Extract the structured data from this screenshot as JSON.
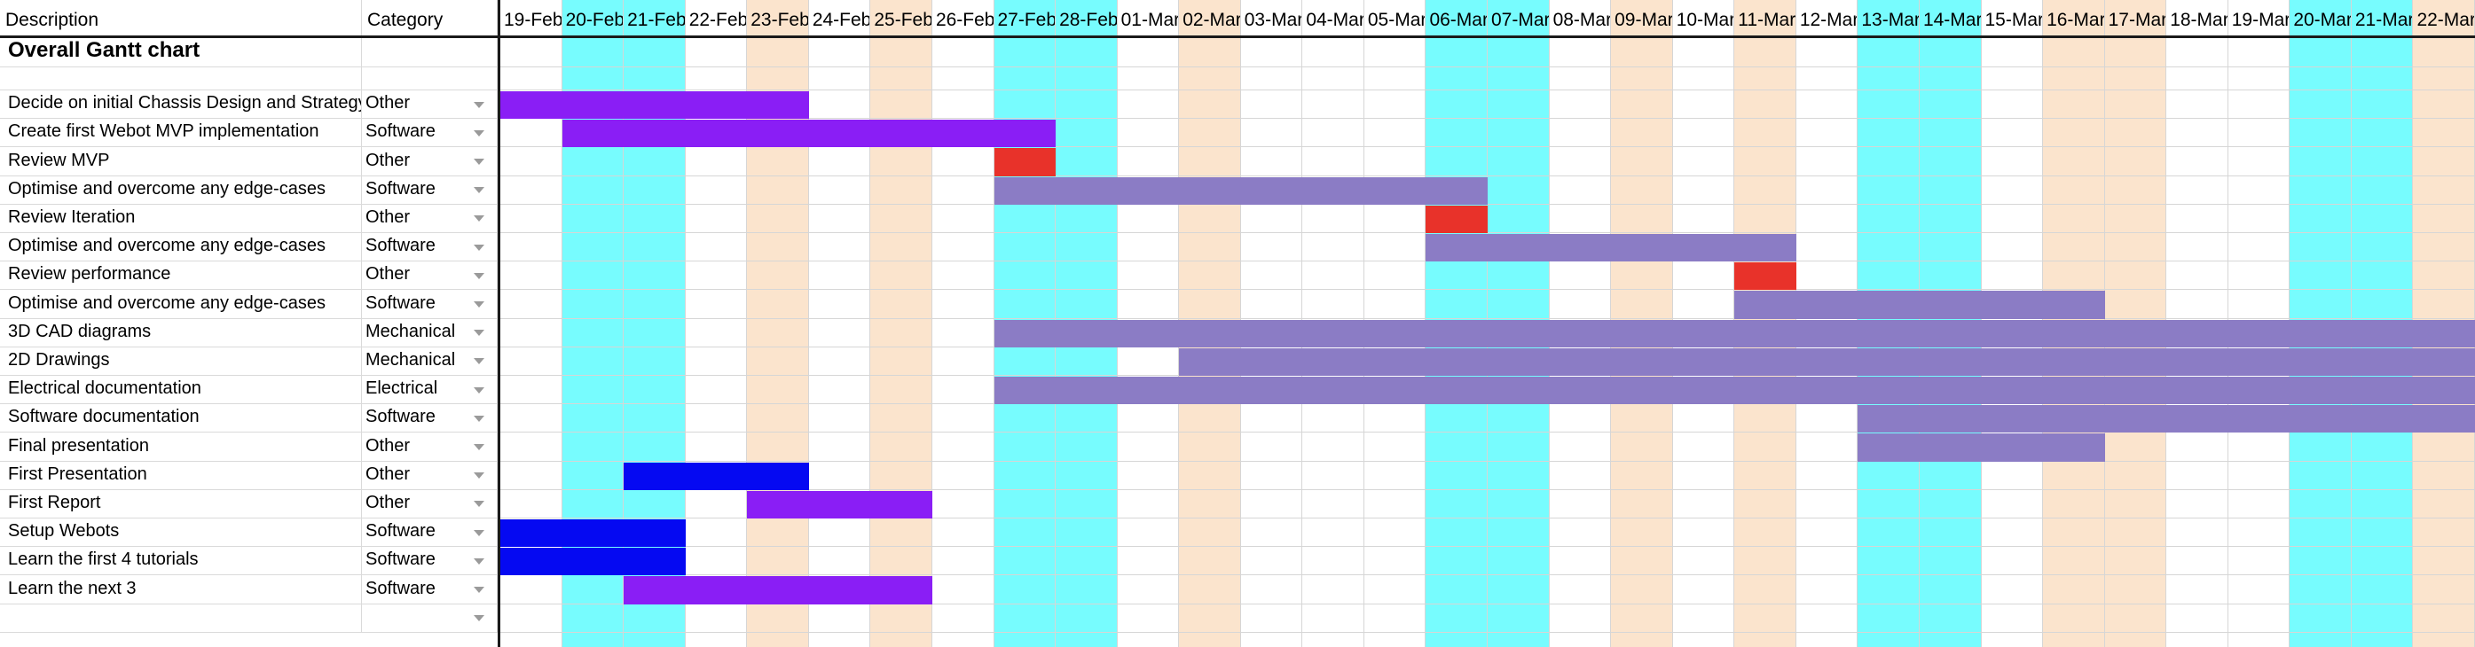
{
  "sheet": {
    "header": {
      "description": "Description",
      "category": "Category"
    },
    "title": "Overall Gantt chart",
    "dates": [
      "19-Feb",
      "20-Feb",
      "21-Feb",
      "22-Feb",
      "23-Feb",
      "24-Feb",
      "25-Feb",
      "26-Feb",
      "27-Feb",
      "28-Feb",
      "01-Mar",
      "02-Mar",
      "03-Mar",
      "04-Mar",
      "05-Mar",
      "06-Mar",
      "07-Mar",
      "08-Mar",
      "09-Mar",
      "10-Mar",
      "11-Mar",
      "12-Mar",
      "13-Mar",
      "14-Mar",
      "15-Mar",
      "16-Mar",
      "17-Mar",
      "18-Mar",
      "19-Mar",
      "20-Mar",
      "21-Mar",
      "22-Mar"
    ],
    "column_shading": [
      "white",
      "cyan",
      "cyan",
      "white",
      "peach",
      "white",
      "peach",
      "white",
      "cyan",
      "cyan",
      "white",
      "peach",
      "white",
      "white",
      "white",
      "cyan",
      "cyan",
      "white",
      "peach",
      "white",
      "peach",
      "white",
      "cyan",
      "cyan",
      "white",
      "peach",
      "peach",
      "white",
      "white",
      "cyan",
      "cyan",
      "peach"
    ],
    "colors": {
      "cyan": "#77fcfe",
      "peach": "#fbe4cd",
      "purple": "#8a1ef5",
      "blue": "#0509f2",
      "red": "#e8322a",
      "lavender": "#8b7cc5",
      "grid": "#dadada",
      "frozen_line": "#1a1a1a"
    },
    "tasks": [
      {
        "description": "Decide on initial Chassis Design and Strategy",
        "category": "Other",
        "bar": {
          "start": 0,
          "end": 5,
          "color": "purple"
        }
      },
      {
        "description": "Create first Webot MVP implementation",
        "category": "Software",
        "bar": {
          "start": 1,
          "end": 9,
          "color": "purple"
        }
      },
      {
        "description": "Review MVP",
        "category": "Other",
        "bar": {
          "start": 8,
          "end": 9,
          "color": "red"
        }
      },
      {
        "description": "Optimise and overcome any edge-cases",
        "category": "Software",
        "bar": {
          "start": 8,
          "end": 16,
          "color": "lavender"
        }
      },
      {
        "description": "Review Iteration",
        "category": "Other",
        "bar": {
          "start": 15,
          "end": 16,
          "color": "red"
        }
      },
      {
        "description": "Optimise and overcome any edge-cases",
        "category": "Software",
        "bar": {
          "start": 15,
          "end": 21,
          "color": "lavender"
        }
      },
      {
        "description": "Review performance",
        "category": "Other",
        "bar": {
          "start": 20,
          "end": 21,
          "color": "red"
        }
      },
      {
        "description": "Optimise and overcome any edge-cases",
        "category": "Software",
        "bar": {
          "start": 20,
          "end": 26,
          "color": "lavender"
        }
      },
      {
        "description": "3D CAD diagrams",
        "category": "Mechanical",
        "bar": {
          "start": 8,
          "end": 32,
          "color": "lavender"
        }
      },
      {
        "description": "2D Drawings",
        "category": "Mechanical",
        "bar": {
          "start": 11,
          "end": 32,
          "color": "lavender"
        }
      },
      {
        "description": "Electrical documentation",
        "category": "Electrical",
        "bar": {
          "start": 8,
          "end": 32,
          "color": "lavender"
        }
      },
      {
        "description": "Software documentation",
        "category": "Software",
        "bar": {
          "start": 22,
          "end": 32,
          "color": "lavender"
        }
      },
      {
        "description": "Final presentation",
        "category": "Other",
        "bar": {
          "start": 22,
          "end": 26,
          "color": "lavender"
        }
      },
      {
        "description": "First Presentation",
        "category": "Other",
        "bar": {
          "start": 2,
          "end": 5,
          "color": "blue"
        }
      },
      {
        "description": "First Report",
        "category": "Other",
        "bar": {
          "start": 4,
          "end": 7,
          "color": "purple"
        }
      },
      {
        "description": "Setup Webots",
        "category": "Software",
        "bar": {
          "start": 0,
          "end": 3,
          "color": "blue"
        }
      },
      {
        "description": "Learn the first 4 tutorials",
        "category": "Software",
        "bar": {
          "start": 0,
          "end": 3,
          "color": "blue"
        }
      },
      {
        "description": "Learn the next 3",
        "category": "Software",
        "bar": {
          "start": 2,
          "end": 7,
          "color": "purple"
        }
      },
      {
        "description": "",
        "category": "",
        "bar": null
      }
    ]
  }
}
